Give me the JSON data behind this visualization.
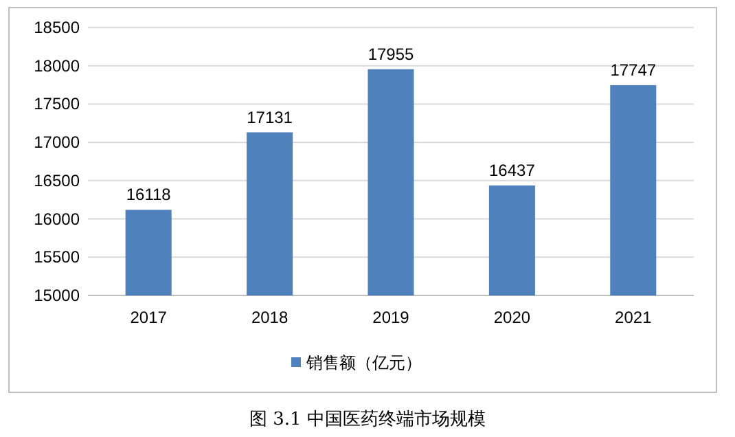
{
  "chart_data": {
    "type": "bar",
    "categories": [
      "2017",
      "2018",
      "2019",
      "2020",
      "2021"
    ],
    "series": [
      {
        "name": "销售额（亿元）",
        "color": "#4f81bd",
        "values": [
          16118,
          17131,
          17955,
          16437,
          17747
        ]
      }
    ],
    "ylim": [
      15000,
      18500
    ],
    "yticks": [
      15000,
      15500,
      16000,
      16500,
      17000,
      17500,
      18000,
      18500
    ],
    "grid": "y",
    "data_labels": true,
    "legend": "bottom",
    "annotations": [
      "图 3.1  中国医药终端市场规模"
    ]
  }
}
